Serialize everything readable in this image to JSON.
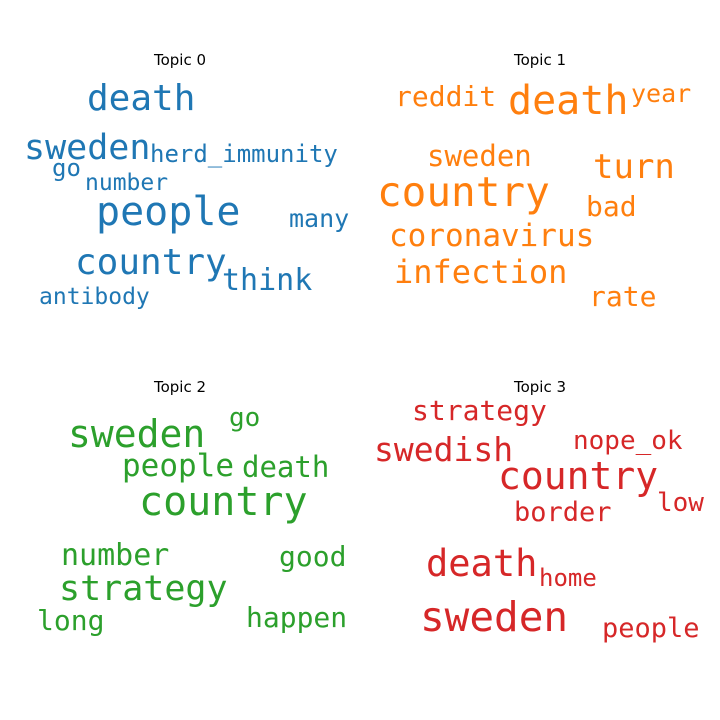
{
  "chart_data": {
    "type": "wordcloud",
    "panels": [
      {
        "title": "Topic 0",
        "color": "#1f77b4",
        "words": [
          "death",
          "sweden",
          "herd_immunity",
          "go",
          "number",
          "people",
          "many",
          "country",
          "think",
          "antibody"
        ]
      },
      {
        "title": "Topic 1",
        "color": "#ff7f0e",
        "words": [
          "reddit",
          "death",
          "year",
          "sweden",
          "turn",
          "country",
          "bad",
          "coronavirus",
          "infection",
          "rate"
        ]
      },
      {
        "title": "Topic 2",
        "color": "#2ca02c",
        "words": [
          "go",
          "sweden",
          "people",
          "death",
          "country",
          "number",
          "good",
          "strategy",
          "long",
          "happen"
        ]
      },
      {
        "title": "Topic 3",
        "color": "#d62728",
        "words": [
          "strategy",
          "nope_ok",
          "swedish",
          "country",
          "low",
          "border",
          "death",
          "home",
          "sweden",
          "people"
        ]
      }
    ]
  }
}
